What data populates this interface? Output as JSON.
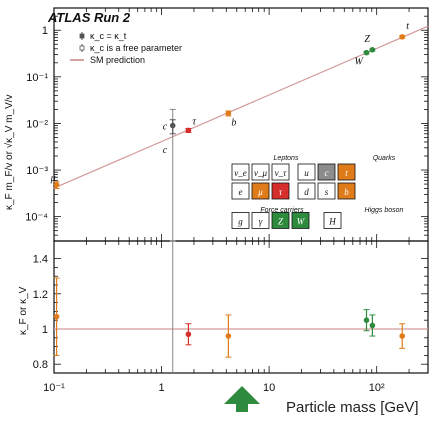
{
  "chart_data": [
    {
      "type": "scatter",
      "title": "ATLAS Run 2",
      "ylabel": "κ_F m_F/v or √κ_V m_V/v",
      "yscale": "log",
      "ylim": [
        3e-05,
        3
      ],
      "xlim": [
        0.1,
        300
      ],
      "xscale": "log",
      "yticks": [
        {
          "value": 1,
          "label": "1"
        },
        {
          "value": 0.1,
          "label": "10⁻¹"
        },
        {
          "value": 0.01,
          "label": "10⁻²"
        },
        {
          "value": 0.001,
          "label": "10⁻³"
        },
        {
          "value": 0.0001,
          "label": "10⁻⁴"
        }
      ],
      "legend": {
        "placement": "top-left",
        "entries": [
          {
            "label": "κ_c = κ_t",
            "color": "#555555"
          },
          {
            "label": "κ_c is a free parameter",
            "color": "#555555"
          },
          {
            "label": "SM prediction",
            "color": "#c97b7b"
          }
        ]
      },
      "points": [
        {
          "name": "μ",
          "x": 0.1057,
          "y": 0.00048,
          "color": "#e07b1a",
          "yerr": 8e-05
        },
        {
          "name": "c",
          "x": 1.27,
          "y": 0.0028,
          "color": "#888888",
          "ylow": 3e-05,
          "yhigh": 0.02
        },
        {
          "name": "c",
          "x": 1.27,
          "y": 0.009,
          "color": "#555555",
          "yerr": 0.003
        },
        {
          "name": "τ",
          "x": 1.777,
          "y": 0.0071,
          "color": "#d6302c",
          "yerr": 0.0007
        },
        {
          "name": "b",
          "x": 4.18,
          "y": 0.0165,
          "color": "#e07b1a",
          "yerr": 0.002
        },
        {
          "name": "W",
          "x": 80.4,
          "y": 0.33,
          "color": "#2e8b3e",
          "yerr": 0.02
        },
        {
          "name": "Z",
          "x": 91.2,
          "y": 0.38,
          "color": "#2e8b3e",
          "yerr": 0.02
        },
        {
          "name": "t",
          "x": 172.7,
          "y": 0.72,
          "color": "#e07b1a",
          "yerr": 0.04
        }
      ],
      "sm_line": {
        "x": [
          0.1,
          300
        ],
        "y": [
          0.00041,
          1.22
        ]
      },
      "particle_grid": {
        "titles": [
          "Leptons",
          "Quarks",
          "Force carriers",
          "Higgs boson"
        ],
        "cells": [
          {
            "label": "ν_e",
            "fill": "#ffffff"
          },
          {
            "label": "ν_μ",
            "fill": "#ffffff"
          },
          {
            "label": "ν_τ",
            "fill": "#ffffff"
          },
          {
            "label": "u",
            "fill": "#ffffff"
          },
          {
            "label": "c",
            "fill": "#8c8c8c"
          },
          {
            "label": "t",
            "fill": "#e07b1a"
          },
          {
            "label": "e",
            "fill": "#ffffff"
          },
          {
            "label": "μ",
            "fill": "#e07b1a"
          },
          {
            "label": "τ",
            "fill": "#d6302c"
          },
          {
            "label": "d",
            "fill": "#ffffff"
          },
          {
            "label": "s",
            "fill": "#ffffff"
          },
          {
            "label": "b",
            "fill": "#e07b1a"
          },
          {
            "label": "g",
            "fill": "#ffffff"
          },
          {
            "label": "γ",
            "fill": "#ffffff"
          },
          {
            "label": "Z",
            "fill": "#2e8b3e"
          },
          {
            "label": "W",
            "fill": "#2e8b3e"
          },
          {
            "label": "H",
            "fill": "#ffffff"
          }
        ]
      }
    },
    {
      "type": "scatter",
      "ylabel": "κ_F or κ_V",
      "ylim": [
        0.75,
        1.5
      ],
      "yticks": [
        {
          "value": 0.8,
          "label": "0.8"
        },
        {
          "value": 1.0,
          "label": "1"
        },
        {
          "value": 1.2,
          "label": "1.2"
        },
        {
          "value": 1.4,
          "label": "1.4"
        }
      ],
      "xlabel": "Particle mass [GeV]",
      "xlim": [
        0.1,
        300
      ],
      "xscale": "log",
      "xticks": [
        {
          "value": 0.1,
          "label": "10⁻¹"
        },
        {
          "value": 1,
          "label": "1"
        },
        {
          "value": 10,
          "label": "10"
        },
        {
          "value": 100,
          "label": "10²"
        }
      ],
      "reference_line": 1.0,
      "points": [
        {
          "name": "μ",
          "x": 0.1057,
          "y": 1.07,
          "color": "#e07b1a",
          "yerr": 0.22
        },
        {
          "name": "c",
          "x": 1.27,
          "y": 1.25,
          "color": "#888888",
          "ylow": 0.75,
          "yhigh": 1.5
        },
        {
          "name": "τ",
          "x": 1.777,
          "y": 0.97,
          "color": "#d6302c",
          "yerr": 0.06
        },
        {
          "name": "b",
          "x": 4.18,
          "y": 0.96,
          "color": "#e07b1a",
          "yerr": 0.12
        },
        {
          "name": "W",
          "x": 80.4,
          "y": 1.05,
          "color": "#2e8b3e",
          "yerr": 0.06
        },
        {
          "name": "Z",
          "x": 91.2,
          "y": 1.02,
          "color": "#2e8b3e",
          "yerr": 0.06
        },
        {
          "name": "t",
          "x": 172.7,
          "y": 0.96,
          "color": "#e07b1a",
          "yerr": 0.07
        }
      ]
    }
  ],
  "ui": {
    "pointer_color": "#2e8b3e"
  }
}
